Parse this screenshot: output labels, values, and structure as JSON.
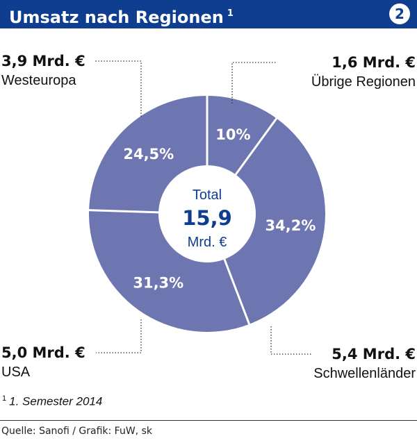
{
  "header": {
    "title": "Umsatz nach Regionen",
    "footnote_marker": "1",
    "badge": "2"
  },
  "colors": {
    "header_bg": "#0f3d8f",
    "slice": "#6d76b0",
    "center_text": "#0f3d8f"
  },
  "chart_data": {
    "type": "pie",
    "variant": "donut",
    "title": "Umsatz nach Regionen",
    "unit": "Mrd. €",
    "center": {
      "label_top": "Total",
      "value": "15,9",
      "label_bottom": "Mrd. €"
    },
    "slices": [
      {
        "region": "Übrige Regionen",
        "amount": "1,6 Mrd. €",
        "percent_label": "10%",
        "percent": 10.0
      },
      {
        "region": "Schwellenländer",
        "amount": "5,4 Mrd. €",
        "percent_label": "34,2%",
        "percent": 34.2
      },
      {
        "region": "USA",
        "amount": "5,0 Mrd. €",
        "percent_label": "31,3%",
        "percent": 31.3
      },
      {
        "region": "Westeuropa",
        "amount": "3,9 Mrd. €",
        "percent_label": "24,5%",
        "percent": 24.5
      }
    ]
  },
  "footnote": {
    "marker": "1",
    "text": "1. Semester 2014"
  },
  "source": "Quelle: Sanofi / Grafik: FuW, sk"
}
